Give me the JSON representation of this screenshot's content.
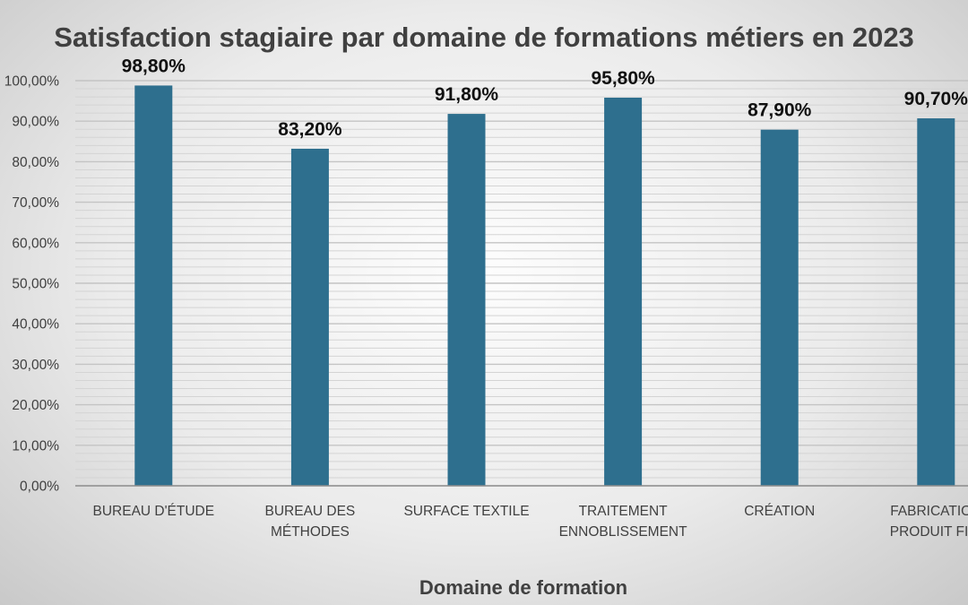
{
  "chart_data": {
    "type": "bar",
    "title": "Satisfaction stagiaire par domaine de formations métiers en 2023",
    "xlabel": "Domaine de formation",
    "ylabel": "",
    "categories": [
      [
        "BUREAU D'ÉTUDE"
      ],
      [
        "BUREAU DES",
        "MÉTHODES"
      ],
      [
        "SURFACE TEXTILE"
      ],
      [
        "TRAITEMENT",
        "ENNOBLISSEMENT"
      ],
      [
        "CRÉATION"
      ],
      [
        "FABRICATION",
        "PRODUIT FINI"
      ]
    ],
    "values": [
      98.8,
      83.2,
      91.8,
      95.8,
      87.9,
      90.7
    ],
    "data_labels": [
      "98,80%",
      "83,20%",
      "91,80%",
      "95,80%",
      "87,90%",
      "90,70%"
    ],
    "ylim": [
      0,
      100
    ],
    "yticks": [
      0,
      10,
      20,
      30,
      40,
      50,
      60,
      70,
      80,
      90,
      100
    ],
    "ytick_labels": [
      "0,00%",
      "10,00%",
      "20,00%",
      "30,00%",
      "40,00%",
      "50,00%",
      "60,00%",
      "70,00%",
      "80,00%",
      "90,00%",
      "100,00%"
    ],
    "minor_grid_step": 2,
    "grid": true,
    "legend": "none",
    "bar_color": "#2e6f8e"
  }
}
